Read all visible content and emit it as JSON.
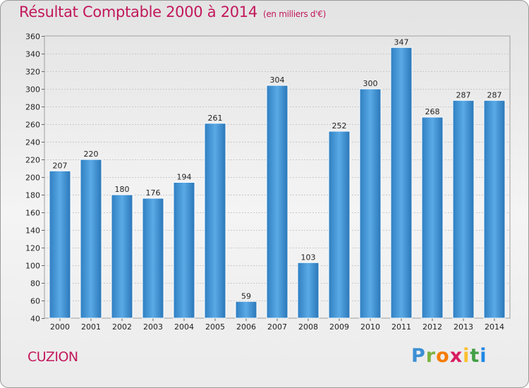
{
  "chart_data": {
    "type": "bar",
    "title": "Résultat Comptable 2000 à 2014",
    "subtitle": "(en milliers d'€)",
    "categories": [
      "2000",
      "2001",
      "2002",
      "2003",
      "2004",
      "2005",
      "2006",
      "2007",
      "2008",
      "2009",
      "2010",
      "2011",
      "2012",
      "2013",
      "2014"
    ],
    "values": [
      207,
      220,
      180,
      176,
      194,
      261,
      59,
      304,
      103,
      252,
      300,
      347,
      268,
      287,
      287
    ],
    "ylim": [
      40,
      360
    ],
    "yticks": [
      40,
      60,
      80,
      100,
      120,
      140,
      160,
      180,
      200,
      220,
      240,
      260,
      280,
      300,
      320,
      340,
      360
    ],
    "grid": true,
    "bar_color": "#3b8fd4"
  },
  "commune": "CUZION",
  "logo": {
    "letters": [
      "P",
      "r",
      "o",
      "x",
      "i",
      "t",
      "i"
    ],
    "colors": [
      "#3b8fd4",
      "#7cb342",
      "#f57c00",
      "#d81b60",
      "#fbc02d",
      "#43a047",
      "#1e88e5"
    ]
  }
}
